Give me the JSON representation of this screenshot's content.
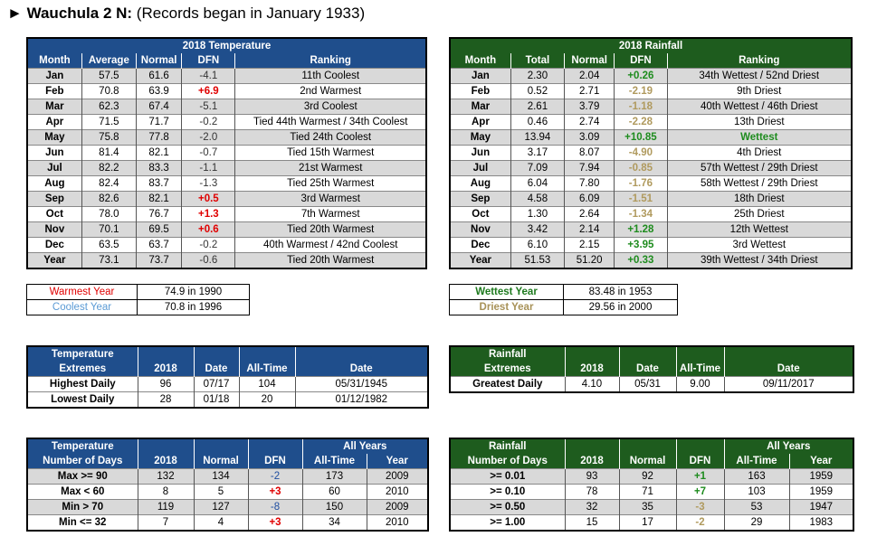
{
  "title": {
    "bold": "Wauchula 2 N:",
    "rest": " (Records began in January 1933)",
    "marker": "►"
  },
  "temp_table": {
    "caption": "2018 Temperature",
    "headers": [
      "Month",
      "Average",
      "Normal",
      "DFN",
      "Ranking"
    ],
    "rows": [
      [
        "Jan",
        "57.5",
        "61.6",
        "-4.1",
        "11th Coolest"
      ],
      [
        "Feb",
        "70.8",
        "63.9",
        "+6.9",
        "2nd Warmest"
      ],
      [
        "Mar",
        "62.3",
        "67.4",
        "-5.1",
        "3rd Coolest"
      ],
      [
        "Apr",
        "71.5",
        "71.7",
        "-0.2",
        "Tied 44th Warmest / 34th Coolest"
      ],
      [
        "May",
        "75.8",
        "77.8",
        "-2.0",
        "Tied 24th Coolest"
      ],
      [
        "Jun",
        "81.4",
        "82.1",
        "-0.7",
        "Tied 15th Warmest"
      ],
      [
        "Jul",
        "82.2",
        "83.3",
        "-1.1",
        "21st Warmest"
      ],
      [
        "Aug",
        "82.4",
        "83.7",
        "-1.3",
        "Tied 25th Warmest"
      ],
      [
        "Sep",
        "82.6",
        "82.1",
        "+0.5",
        "3rd Warmest"
      ],
      [
        "Oct",
        "78.0",
        "76.7",
        "+1.3",
        "7th Warmest"
      ],
      [
        "Nov",
        "70.1",
        "69.5",
        "+0.6",
        "Tied 20th Warmest"
      ],
      [
        "Dec",
        "63.5",
        "63.7",
        "-0.2",
        "40th Warmest / 42nd Coolest"
      ],
      [
        "Year",
        "73.1",
        "73.7",
        "-0.6",
        "Tied 20th Warmest"
      ]
    ]
  },
  "rain_table": {
    "caption": "2018 Rainfall",
    "headers": [
      "Month",
      "Total",
      "Normal",
      "DFN",
      "Ranking"
    ],
    "rows": [
      [
        "Jan",
        "2.30",
        "2.04",
        "+0.26",
        "34th Wettest / 52nd Driest"
      ],
      [
        "Feb",
        "0.52",
        "2.71",
        "-2.19",
        "9th Driest"
      ],
      [
        "Mar",
        "2.61",
        "3.79",
        "-1.18",
        "40th Wettest / 46th Driest"
      ],
      [
        "Apr",
        "0.46",
        "2.74",
        "-2.28",
        "13th Driest"
      ],
      [
        "May",
        "13.94",
        "3.09",
        "+10.85",
        "Wettest"
      ],
      [
        "Jun",
        "3.17",
        "8.07",
        "-4.90",
        "4th Driest"
      ],
      [
        "Jul",
        "7.09",
        "7.94",
        "-0.85",
        "57th Wettest / 29th Driest"
      ],
      [
        "Aug",
        "6.04",
        "7.80",
        "-1.76",
        "58th Wettest / 29th Driest"
      ],
      [
        "Sep",
        "4.58",
        "6.09",
        "-1.51",
        "18th Driest"
      ],
      [
        "Oct",
        "1.30",
        "2.64",
        "-1.34",
        "25th Driest"
      ],
      [
        "Nov",
        "3.42",
        "2.14",
        "+1.28",
        "12th Wettest"
      ],
      [
        "Dec",
        "6.10",
        "2.15",
        "+3.95",
        "3rd Wettest"
      ],
      [
        "Year",
        "51.53",
        "51.20",
        "+0.33",
        "39th Wettest / 34th Driest"
      ]
    ]
  },
  "temp_records": {
    "warmest_label": "Warmest Year",
    "warmest_value": "74.9 in 1990",
    "coolest_label": "Coolest Year",
    "coolest_value": "70.8 in 1996"
  },
  "rain_records": {
    "wettest_label": "Wettest Year",
    "wettest_value": "83.48 in 1953",
    "driest_label": "Driest Year",
    "driest_value": "29.56 in 2000"
  },
  "temp_extremes": {
    "h1": "Temperature",
    "h2": "Extremes",
    "col_2018": "2018",
    "col_date": "Date",
    "col_alltime": "All-Time",
    "col_date2": "Date",
    "rows": [
      [
        "Highest Daily",
        "96",
        "07/17",
        "104",
        "05/31/1945"
      ],
      [
        "Lowest Daily",
        "28",
        "01/18",
        "20",
        "01/12/1982"
      ]
    ]
  },
  "rain_extremes": {
    "h1": "Rainfall",
    "h2": "Extremes",
    "col_2018": "2018",
    "col_date": "Date",
    "col_alltime": "All-Time",
    "col_date2": "Date",
    "rows": [
      [
        "Greatest Daily",
        "4.10",
        "05/31",
        "9.00",
        "09/11/2017"
      ]
    ]
  },
  "temp_days": {
    "h1": "Temperature",
    "h2": "Number of Days",
    "col_2018": "2018",
    "col_normal": "Normal",
    "col_dfn": "DFN",
    "all_years": "All Years",
    "col_alltime": "All-Time",
    "col_year": "Year",
    "rows": [
      [
        "Max >= 90",
        "132",
        "134",
        "-2",
        "173",
        "2009"
      ],
      [
        "Max < 60",
        "8",
        "5",
        "+3",
        "60",
        "2010"
      ],
      [
        "Min > 70",
        "119",
        "127",
        "-8",
        "150",
        "2009"
      ],
      [
        "Min <= 32",
        "7",
        "4",
        "+3",
        "34",
        "2010"
      ]
    ]
  },
  "rain_days": {
    "h1": "Rainfall",
    "h2": "Number of Days",
    "col_2018": "2018",
    "col_normal": "Normal",
    "col_dfn": "DFN",
    "all_years": "All Years",
    "col_alltime": "All-Time",
    "col_year": "Year",
    "rows": [
      [
        ">= 0.01",
        "93",
        "92",
        "+1",
        "163",
        "1959"
      ],
      [
        ">= 0.10",
        "78",
        "71",
        "+7",
        "103",
        "1959"
      ],
      [
        ">= 0.50",
        "32",
        "35",
        "-3",
        "53",
        "1947"
      ],
      [
        ">= 1.00",
        "15",
        "17",
        "-2",
        "29",
        "1983"
      ]
    ]
  },
  "colors": {
    "blue_header": "#1f4e8c",
    "green_header": "#1e5c1e",
    "positive_temp": "#e00000",
    "positive_rain": "#1e8c1e",
    "negative_rain": "#b09a5e",
    "alt_row": "#d9d9d9"
  }
}
